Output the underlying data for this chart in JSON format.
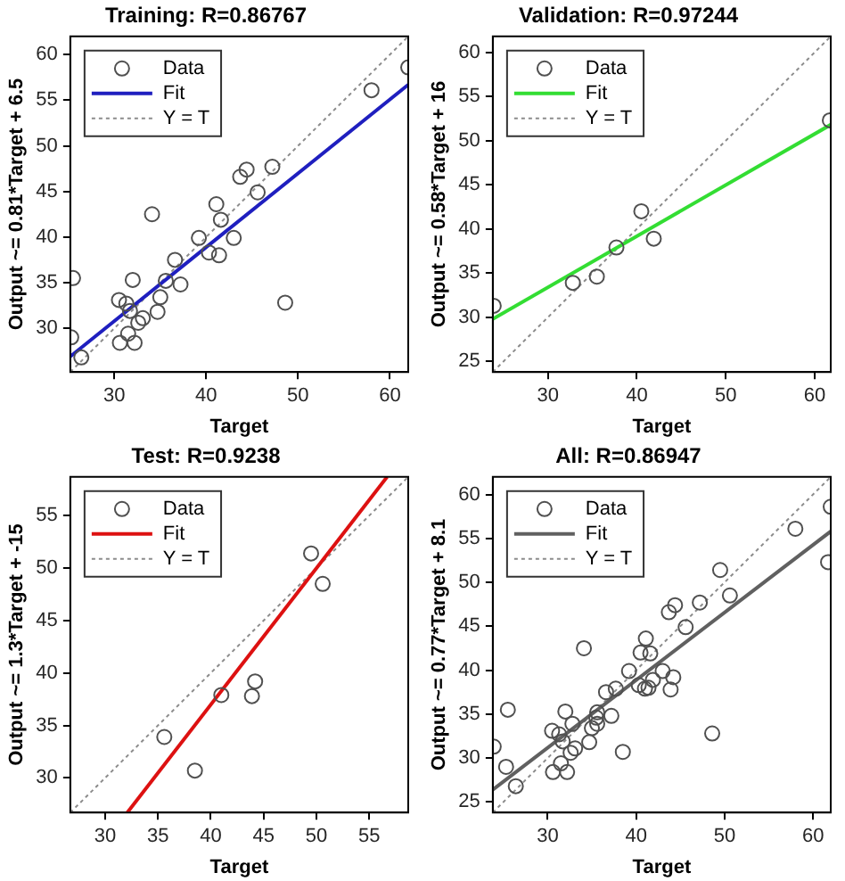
{
  "chart_data": [
    {
      "type": "scatter",
      "title": "Training: R=0.86767",
      "xlabel": "Target",
      "ylabel": "Output ~= 0.81*Target + 6.5",
      "xlim": [
        25.2,
        62
      ],
      "ylim": [
        25.2,
        62
      ],
      "xticks": [
        30,
        40,
        50,
        60
      ],
      "yticks": [
        30,
        35,
        40,
        45,
        50,
        55,
        60
      ],
      "legend": "top left",
      "series": [
        {
          "name": "Data",
          "type": "scatter",
          "marker": "circle",
          "color": "#505050",
          "x": [
            25.3,
            26.4,
            25.5,
            30.5,
            31.3,
            31.7,
            32,
            30.6,
            31.5,
            32.2,
            32.6,
            33.1,
            34.1,
            34.7,
            35,
            35.6,
            36.6,
            37.2,
            39.2,
            40.3,
            41.1,
            41.4,
            41.6,
            43,
            43.7,
            44.4,
            45.6,
            47.2,
            48.6,
            58,
            62
          ],
          "values": [
            29,
            26.8,
            35.5,
            33.1,
            32.7,
            31.9,
            35.3,
            28.4,
            29.4,
            28.4,
            30.6,
            31.1,
            42.5,
            31.8,
            33.4,
            35.2,
            37.5,
            34.8,
            39.9,
            38.3,
            43.6,
            38,
            41.9,
            39.9,
            46.6,
            47.4,
            44.9,
            47.7,
            32.8,
            56.1,
            58.6
          ]
        },
        {
          "name": "Fit",
          "type": "line",
          "marker": "none",
          "line_style": "solid",
          "color": "#1f1fbf",
          "x": [
            25.2,
            62
          ],
          "values": [
            26.9,
            56.7
          ]
        },
        {
          "name": "Y = T",
          "type": "line",
          "marker": "none",
          "line_style": "dotted",
          "color": "#8c8c8c",
          "x": [
            25.2,
            62
          ],
          "values": [
            25.2,
            62
          ]
        }
      ]
    },
    {
      "type": "scatter",
      "title": "Validation: R=0.97244",
      "xlabel": "Target",
      "ylabel": "Output ~= 0.58*Target + 16",
      "xlim": [
        23.8,
        61.8
      ],
      "ylim": [
        23.8,
        61.8
      ],
      "xticks": [
        30,
        40,
        50,
        60
      ],
      "yticks": [
        25,
        30,
        35,
        40,
        45,
        50,
        55,
        60
      ],
      "legend": "top left",
      "series": [
        {
          "name": "Data",
          "type": "scatter",
          "marker": "circle",
          "color": "#505050",
          "x": [
            23.9,
            32.8,
            35.5,
            37.7,
            40.5,
            41.9,
            61.7
          ],
          "values": [
            31.3,
            33.9,
            34.6,
            37.9,
            42,
            38.9,
            52.3
          ]
        },
        {
          "name": "Fit",
          "type": "line",
          "marker": "none",
          "line_style": "solid",
          "color": "#33dd33",
          "x": [
            23.8,
            61.8
          ],
          "values": [
            29.8,
            51.8
          ]
        },
        {
          "name": "Y = T",
          "type": "line",
          "marker": "none",
          "line_style": "dotted",
          "color": "#8c8c8c",
          "x": [
            23.8,
            61.8
          ],
          "values": [
            23.8,
            61.8
          ]
        }
      ]
    },
    {
      "type": "scatter",
      "title": "Test: R=0.9238",
      "xlabel": "Target",
      "ylabel": "Output ~= 1.3*Target + -15",
      "xlim": [
        26.7,
        58.7
      ],
      "ylim": [
        26.7,
        58.7
      ],
      "xticks": [
        30,
        35,
        40,
        45,
        50,
        55
      ],
      "yticks": [
        30,
        35,
        40,
        45,
        50,
        55
      ],
      "legend": "top left",
      "series": [
        {
          "name": "Data",
          "type": "scatter",
          "marker": "circle",
          "color": "#505050",
          "x": [
            35.6,
            38.5,
            41,
            43.9,
            44.2,
            49.5,
            50.6
          ],
          "values": [
            33.9,
            30.7,
            37.9,
            37.8,
            39.2,
            51.4,
            48.5
          ]
        },
        {
          "name": "Fit",
          "type": "line",
          "marker": "none",
          "line_style": "solid",
          "color": "#dd1111",
          "x": [
            32.1,
            56.7
          ],
          "values": [
            26.7,
            58.7
          ]
        },
        {
          "name": "Y = T",
          "type": "line",
          "marker": "none",
          "line_style": "dotted",
          "color": "#8c8c8c",
          "x": [
            26.7,
            58.7
          ],
          "values": [
            26.7,
            58.7
          ]
        }
      ]
    },
    {
      "type": "scatter",
      "title": "All: R=0.86947",
      "xlabel": "Target",
      "ylabel": "Output ~= 0.77*Target + 8.1",
      "xlim": [
        23.8,
        62
      ],
      "ylim": [
        23.8,
        62
      ],
      "xticks": [
        30,
        40,
        50,
        60
      ],
      "yticks": [
        25,
        30,
        35,
        40,
        45,
        50,
        55,
        60
      ],
      "legend": "top left",
      "series": [
        {
          "name": "Data",
          "type": "scatter",
          "marker": "circle",
          "color": "#505050",
          "x": [
            25.3,
            26.4,
            25.5,
            30.5,
            31.3,
            31.7,
            32,
            30.6,
            31.5,
            32.2,
            32.6,
            33.1,
            34.1,
            34.7,
            35,
            35.6,
            36.6,
            37.2,
            39.2,
            40.3,
            41.1,
            41.4,
            41.6,
            43,
            43.7,
            44.4,
            45.6,
            47.2,
            48.6,
            58,
            62,
            23.9,
            32.8,
            35.5,
            37.7,
            40.5,
            41.9,
            61.7,
            35.6,
            38.5,
            41,
            43.9,
            44.2,
            49.5,
            50.6
          ],
          "values": [
            29,
            26.8,
            35.5,
            33.1,
            32.7,
            31.9,
            35.3,
            28.4,
            29.4,
            28.4,
            30.6,
            31.1,
            42.5,
            31.8,
            33.4,
            35.2,
            37.5,
            34.8,
            39.9,
            38.3,
            43.6,
            38,
            41.9,
            39.9,
            46.6,
            47.4,
            44.9,
            47.7,
            32.8,
            56.1,
            58.6,
            31.3,
            33.9,
            34.6,
            37.9,
            42,
            38.9,
            52.3,
            33.9,
            30.7,
            37.9,
            37.8,
            39.2,
            51.4,
            48.5
          ]
        },
        {
          "name": "Fit",
          "type": "line",
          "marker": "none",
          "line_style": "solid",
          "color": "#606060",
          "x": [
            23.8,
            62
          ],
          "values": [
            26.4,
            55.8
          ]
        },
        {
          "name": "Y = T",
          "type": "line",
          "marker": "none",
          "line_style": "dotted",
          "color": "#8c8c8c",
          "x": [
            23.8,
            62
          ],
          "values": [
            23.8,
            62
          ]
        }
      ]
    }
  ]
}
